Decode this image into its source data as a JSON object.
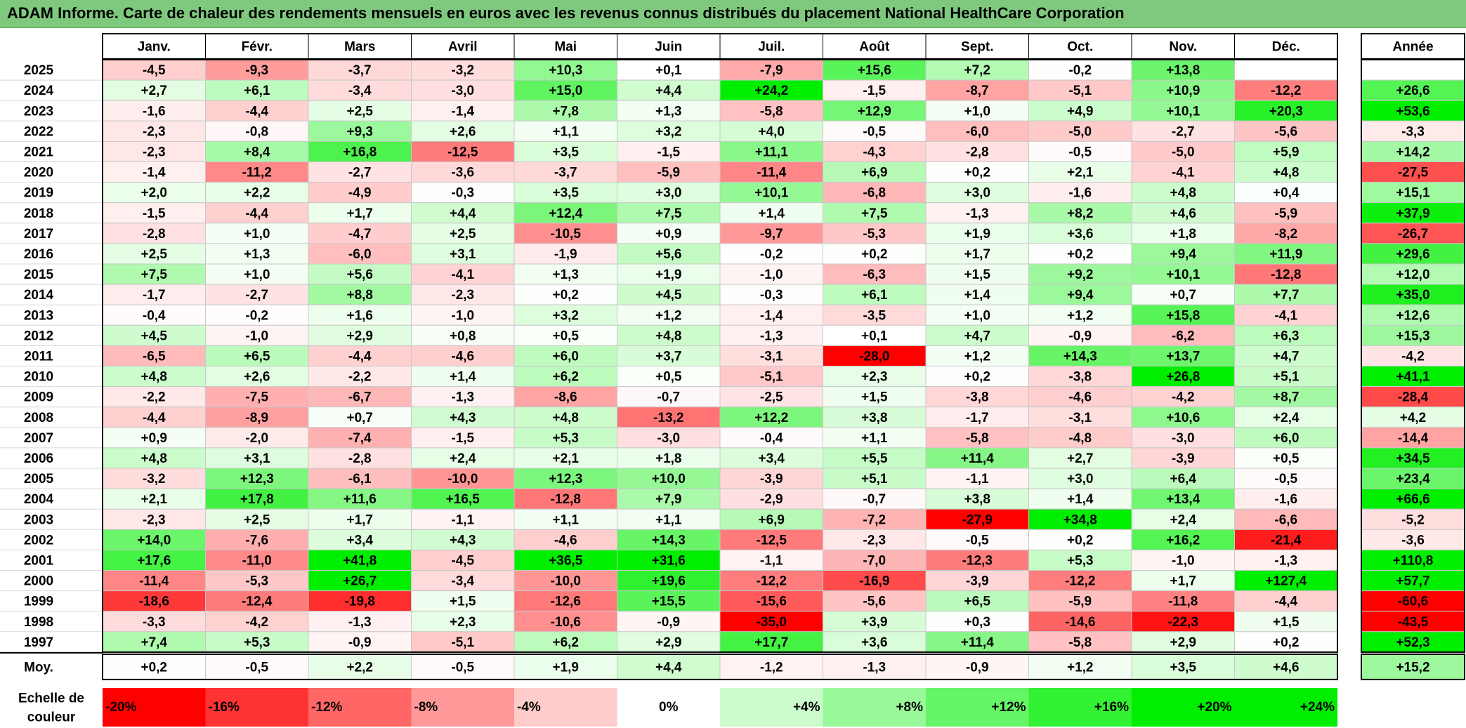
{
  "title": "ADAM Informe. Carte de chaleur des rendements mensuels en euros avec les revenus connus distribués du placement National HealthCare Corporation",
  "chart_data": {
    "type": "heatmap",
    "months": [
      "Janv.",
      "Févr.",
      "Mars",
      "Avril",
      "Mai",
      "Juin",
      "Juil.",
      "Août",
      "Sept.",
      "Oct.",
      "Nov.",
      "Déc."
    ],
    "year_header": "Année",
    "rows": [
      {
        "year": "2025",
        "values": [
          "-4,5",
          "-9,3",
          "-3,7",
          "-3,2",
          "+10,3",
          "+0,1",
          "-7,9",
          "+15,6",
          "+7,2",
          "-0,2",
          "+13,8",
          ""
        ],
        "annual": ""
      },
      {
        "year": "2024",
        "values": [
          "+2,7",
          "+6,1",
          "-3,4",
          "-3,0",
          "+15,0",
          "+4,4",
          "+24,2",
          "-1,5",
          "-8,7",
          "-5,1",
          "+10,9",
          "-12,2"
        ],
        "annual": "+26,6"
      },
      {
        "year": "2023",
        "values": [
          "-1,6",
          "-4,4",
          "+2,5",
          "-1,4",
          "+7,8",
          "+1,3",
          "-5,8",
          "+12,9",
          "+1,0",
          "+4,9",
          "+10,1",
          "+20,3"
        ],
        "annual": "+53,6"
      },
      {
        "year": "2022",
        "values": [
          "-2,3",
          "-0,8",
          "+9,3",
          "+2,6",
          "+1,1",
          "+3,2",
          "+4,0",
          "-0,5",
          "-6,0",
          "-5,0",
          "-2,7",
          "-5,6"
        ],
        "annual": "-3,3"
      },
      {
        "year": "2021",
        "values": [
          "-2,3",
          "+8,4",
          "+16,8",
          "-12,5",
          "+3,5",
          "-1,5",
          "+11,1",
          "-4,3",
          "-2,8",
          "-0,5",
          "-5,0",
          "+5,9"
        ],
        "annual": "+14,2"
      },
      {
        "year": "2020",
        "values": [
          "-1,4",
          "-11,2",
          "-2,7",
          "-3,6",
          "-3,7",
          "-5,9",
          "-11,4",
          "+6,9",
          "+0,2",
          "+2,1",
          "-4,1",
          "+4,8"
        ],
        "annual": "-27,5"
      },
      {
        "year": "2019",
        "values": [
          "+2,0",
          "+2,2",
          "-4,9",
          "-0,3",
          "+3,5",
          "+3,0",
          "+10,1",
          "-6,8",
          "+3,0",
          "-1,6",
          "+4,8",
          "+0,4"
        ],
        "annual": "+15,1"
      },
      {
        "year": "2018",
        "values": [
          "-1,5",
          "-4,4",
          "+1,7",
          "+4,4",
          "+12,4",
          "+7,5",
          "+1,4",
          "+7,5",
          "-1,3",
          "+8,2",
          "+4,6",
          "-5,9"
        ],
        "annual": "+37,9"
      },
      {
        "year": "2017",
        "values": [
          "-2,8",
          "+1,0",
          "-4,7",
          "+2,5",
          "-10,5",
          "+0,9",
          "-9,7",
          "-5,3",
          "+1,9",
          "+3,6",
          "+1,8",
          "-8,2"
        ],
        "annual": "-26,7"
      },
      {
        "year": "2016",
        "values": [
          "+2,5",
          "+1,3",
          "-6,0",
          "+3,1",
          "-1,9",
          "+5,6",
          "-0,2",
          "+0,2",
          "+1,7",
          "+0,2",
          "+9,4",
          "+11,9"
        ],
        "annual": "+29,6"
      },
      {
        "year": "2015",
        "values": [
          "+7,5",
          "+1,0",
          "+5,6",
          "-4,1",
          "+1,3",
          "+1,9",
          "-1,0",
          "-6,3",
          "+1,5",
          "+9,2",
          "+10,1",
          "-12,8"
        ],
        "annual": "+12,0"
      },
      {
        "year": "2014",
        "values": [
          "-1,7",
          "-2,7",
          "+8,8",
          "-2,3",
          "+0,2",
          "+4,5",
          "-0,3",
          "+6,1",
          "+1,4",
          "+9,4",
          "+0,7",
          "+7,7"
        ],
        "annual": "+35,0"
      },
      {
        "year": "2013",
        "values": [
          "-0,4",
          "-0,2",
          "+1,6",
          "-1,0",
          "+3,2",
          "+1,2",
          "-1,4",
          "-3,5",
          "+1,0",
          "+1,2",
          "+15,8",
          "-4,1"
        ],
        "annual": "+12,6"
      },
      {
        "year": "2012",
        "values": [
          "+4,5",
          "-1,0",
          "+2,9",
          "+0,8",
          "+0,5",
          "+4,8",
          "-1,3",
          "+0,1",
          "+4,7",
          "-0,9",
          "-6,2",
          "+6,3"
        ],
        "annual": "+15,3"
      },
      {
        "year": "2011",
        "values": [
          "-6,5",
          "+6,5",
          "-4,4",
          "-4,6",
          "+6,0",
          "+3,7",
          "-3,1",
          "-28,0",
          "+1,2",
          "+14,3",
          "+13,7",
          "+4,7"
        ],
        "annual": "-4,2"
      },
      {
        "year": "2010",
        "values": [
          "+4,8",
          "+2,6",
          "-2,2",
          "+1,4",
          "+6,2",
          "+0,5",
          "-5,1",
          "+2,3",
          "+0,2",
          "-3,8",
          "+26,8",
          "+5,1"
        ],
        "annual": "+41,1"
      },
      {
        "year": "2009",
        "values": [
          "-2,2",
          "-7,5",
          "-6,7",
          "-1,3",
          "-8,6",
          "-0,7",
          "-2,5",
          "+1,5",
          "-3,8",
          "-4,6",
          "-4,2",
          "+8,7"
        ],
        "annual": "-28,4"
      },
      {
        "year": "2008",
        "values": [
          "-4,4",
          "-8,9",
          "+0,7",
          "+4,3",
          "+4,8",
          "-13,2",
          "+12,2",
          "+3,8",
          "-1,7",
          "-3,1",
          "+10,6",
          "+2,4"
        ],
        "annual": "+4,2"
      },
      {
        "year": "2007",
        "values": [
          "+0,9",
          "-2,0",
          "-7,4",
          "-1,5",
          "+5,3",
          "-3,0",
          "-0,4",
          "+1,1",
          "-5,8",
          "-4,8",
          "-3,0",
          "+6,0"
        ],
        "annual": "-14,4"
      },
      {
        "year": "2006",
        "values": [
          "+4,8",
          "+3,1",
          "-2,8",
          "+2,4",
          "+2,1",
          "+1,8",
          "+3,4",
          "+5,5",
          "+11,4",
          "+2,7",
          "-3,9",
          "+0,5"
        ],
        "annual": "+34,5"
      },
      {
        "year": "2005",
        "values": [
          "-3,2",
          "+12,3",
          "-6,1",
          "-10,0",
          "+12,3",
          "+10,0",
          "-3,9",
          "+5,1",
          "-1,1",
          "+3,0",
          "+6,4",
          "-0,5"
        ],
        "annual": "+23,4"
      },
      {
        "year": "2004",
        "values": [
          "+2,1",
          "+17,8",
          "+11,6",
          "+16,5",
          "-12,8",
          "+7,9",
          "-2,9",
          "-0,7",
          "+3,8",
          "+1,4",
          "+13,4",
          "-1,6"
        ],
        "annual": "+66,6"
      },
      {
        "year": "2003",
        "values": [
          "-2,3",
          "+2,5",
          "+1,7",
          "-1,1",
          "+1,1",
          "+1,1",
          "+6,9",
          "-7,2",
          "-27,9",
          "+34,8",
          "+2,4",
          "-6,6"
        ],
        "annual": "-5,2"
      },
      {
        "year": "2002",
        "values": [
          "+14,0",
          "-7,6",
          "+3,4",
          "+4,3",
          "-4,6",
          "+14,3",
          "-12,5",
          "-2,3",
          "-0,5",
          "+0,2",
          "+16,2",
          "-21,4"
        ],
        "annual": "-3,6"
      },
      {
        "year": "2001",
        "values": [
          "+17,6",
          "-11,0",
          "+41,8",
          "-4,5",
          "+36,5",
          "+31,6",
          "-1,1",
          "-7,0",
          "-12,3",
          "+5,3",
          "-1,0",
          "-1,3"
        ],
        "annual": "+110,8"
      },
      {
        "year": "2000",
        "values": [
          "-11,4",
          "-5,3",
          "+26,7",
          "-3,4",
          "-10,0",
          "+19,6",
          "-12,2",
          "-16,9",
          "-3,9",
          "-12,2",
          "+1,7",
          "+127,4"
        ],
        "annual": "+57,7"
      },
      {
        "year": "1999",
        "values": [
          "-18,6",
          "-12,4",
          "-19,8",
          "+1,5",
          "-12,6",
          "+15,5",
          "-15,6",
          "-5,6",
          "+6,5",
          "-5,9",
          "-11,8",
          "-4,4"
        ],
        "annual": "-60,6"
      },
      {
        "year": "1998",
        "values": [
          "-3,3",
          "-4,2",
          "-1,3",
          "+2,3",
          "-10,6",
          "-0,9",
          "-35,0",
          "+3,9",
          "+0,3",
          "-14,6",
          "-22,3",
          "+1,5"
        ],
        "annual": "-43,5"
      },
      {
        "year": "1997",
        "values": [
          "+7,4",
          "+5,3",
          "-0,9",
          "-5,1",
          "+6,2",
          "+2,9",
          "+17,7",
          "+3,6",
          "+11,4",
          "-5,8",
          "+2,9",
          "+0,2"
        ],
        "annual": "+52,3"
      }
    ],
    "average": {
      "label": "Moy.",
      "values": [
        "+0,2",
        "-0,5",
        "+2,2",
        "-0,5",
        "+1,9",
        "+4,4",
        "-1,2",
        "-1,3",
        "-0,9",
        "+1,2",
        "+3,5",
        "+4,6"
      ],
      "annual": "+15,2"
    },
    "scale": {
      "label_line1": "Echelle de",
      "label_line2": "couleur",
      "steps": [
        "-20%",
        "-16%",
        "-12%",
        "-8%",
        "-4%",
        "0%",
        "+4%",
        "+8%",
        "+12%",
        "+16%",
        "+20%",
        "+24%"
      ]
    },
    "colors": {
      "title_bar": "#7fc97f",
      "negative_max": "#ff0000",
      "neutral": "#ffffff",
      "positive_max": "#00ee00"
    }
  }
}
